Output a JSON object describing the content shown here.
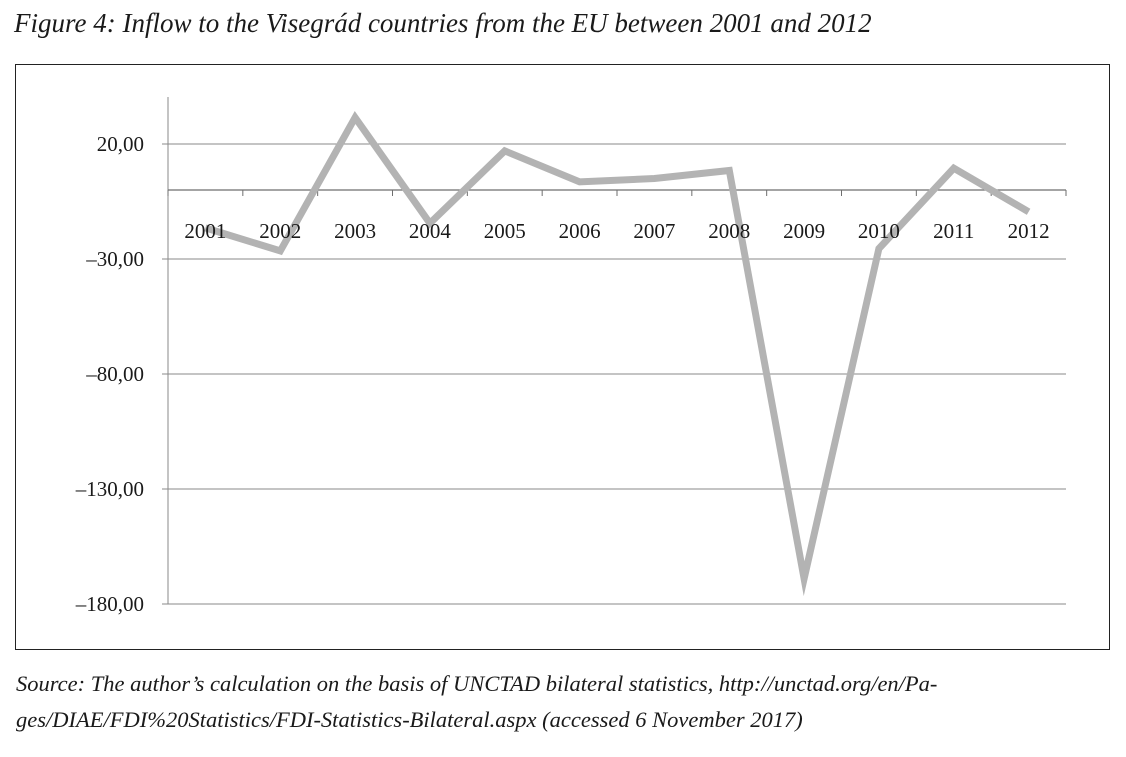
{
  "figure_title": "Figure 4: Inflow to the Visegrád countries from the EU between 2001 and 2012",
  "source_note": {
    "line1": "Source: The author’s calculation on the basis of UNCTAD bilateral statistics, http://unctad.org/en/Pa-",
    "line2": "ges/DIAE/FDI%20Statistics/FDI-Statistics-Bilateral.aspx (accessed 6 November 2017)"
  },
  "chart_data": {
    "type": "line",
    "title": "",
    "xlabel": "",
    "ylabel": "",
    "x": [
      "2001",
      "2002",
      "2003",
      "2004",
      "2005",
      "2006",
      "2007",
      "2008",
      "2009",
      "2010",
      "2011",
      "2012"
    ],
    "series": [
      {
        "name": "",
        "values": [
          -16.5,
          -26.5,
          31.5,
          -14.5,
          17,
          3.5,
          5,
          8.5,
          -169,
          -25.5,
          9.5,
          -9.5
        ],
        "color": "#b3b3b3"
      }
    ],
    "yticks": [
      20,
      -30,
      -80,
      -130,
      -180
    ],
    "ytick_labels": [
      "20,00",
      "–30,00",
      "–80,00",
      "–130,00",
      "–180,00"
    ],
    "ylim": [
      -180,
      40
    ],
    "grid": true,
    "legend": "none"
  }
}
